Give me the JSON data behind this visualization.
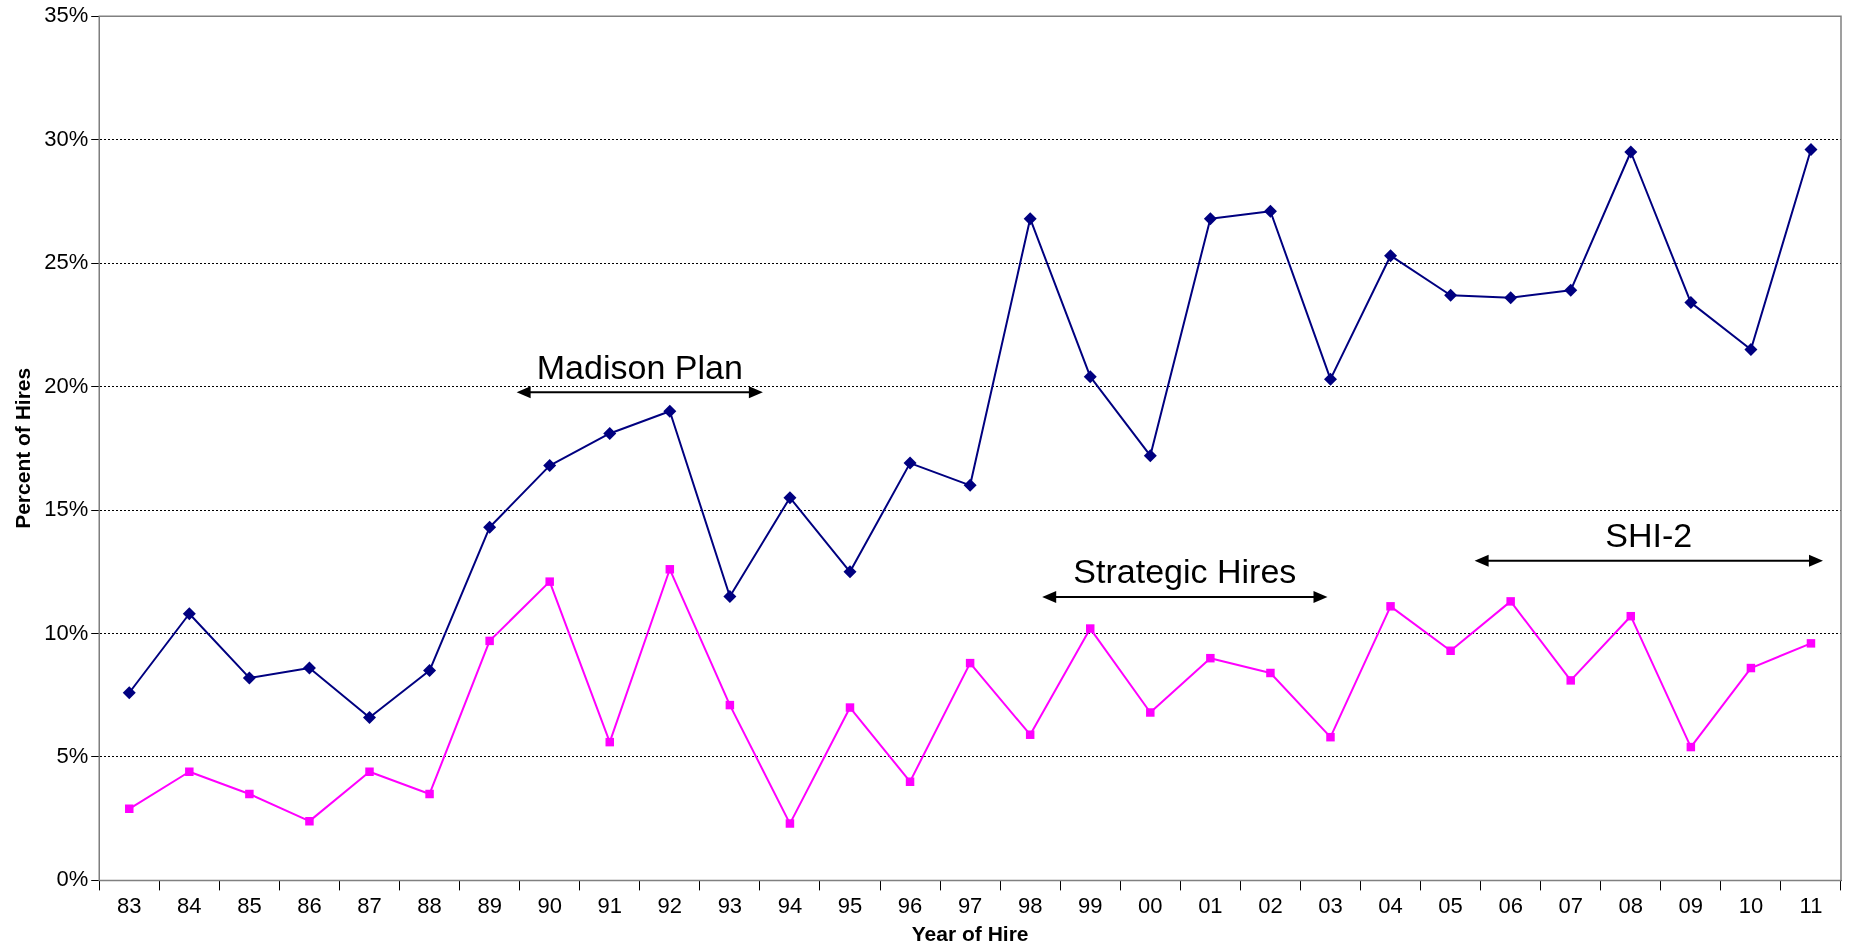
{
  "chart_data": {
    "type": "line",
    "xlabel": "Year of Hire",
    "ylabel": "Percent of Hires",
    "categories": [
      "83",
      "84",
      "85",
      "86",
      "87",
      "88",
      "89",
      "90",
      "91",
      "92",
      "93",
      "94",
      "95",
      "96",
      "97",
      "98",
      "99",
      "00",
      "01",
      "02",
      "03",
      "04",
      "05",
      "06",
      "07",
      "08",
      "09",
      "10",
      "11"
    ],
    "series": [
      {
        "color": "#000080",
        "marker": "diamond",
        "values": [
          7.6,
          10.8,
          8.2,
          8.6,
          6.6,
          8.5,
          14.3,
          16.8,
          18.1,
          19.0,
          11.5,
          15.5,
          12.5,
          16.9,
          16.0,
          26.8,
          20.4,
          17.2,
          26.8,
          27.1,
          20.3,
          25.3,
          23.7,
          23.6,
          23.9,
          29.5,
          23.4,
          21.5,
          29.6
        ]
      },
      {
        "color": "#ff00ff",
        "marker": "square",
        "values": [
          2.9,
          4.4,
          3.5,
          2.4,
          4.4,
          3.5,
          9.7,
          12.1,
          5.6,
          12.6,
          7.1,
          2.3,
          7.0,
          4.0,
          8.8,
          5.9,
          10.2,
          6.8,
          9.0,
          8.4,
          5.8,
          11.1,
          9.3,
          11.3,
          8.1,
          10.7,
          5.4,
          8.6,
          9.6
        ]
      }
    ],
    "ylim": [
      0,
      35
    ],
    "yticks": [
      {
        "value": 0,
        "label": "0%"
      },
      {
        "value": 5,
        "label": "5%"
      },
      {
        "value": 10,
        "label": "10%"
      },
      {
        "value": 15,
        "label": "15%"
      },
      {
        "value": 20,
        "label": "20%"
      },
      {
        "value": 25,
        "label": "25%"
      },
      {
        "value": 30,
        "label": "30%"
      },
      {
        "value": 35,
        "label": "35%"
      }
    ],
    "grid": "y",
    "legend": false,
    "annotations": [
      "Madison Plan",
      "Strategic Hires",
      "SHI-2"
    ]
  }
}
